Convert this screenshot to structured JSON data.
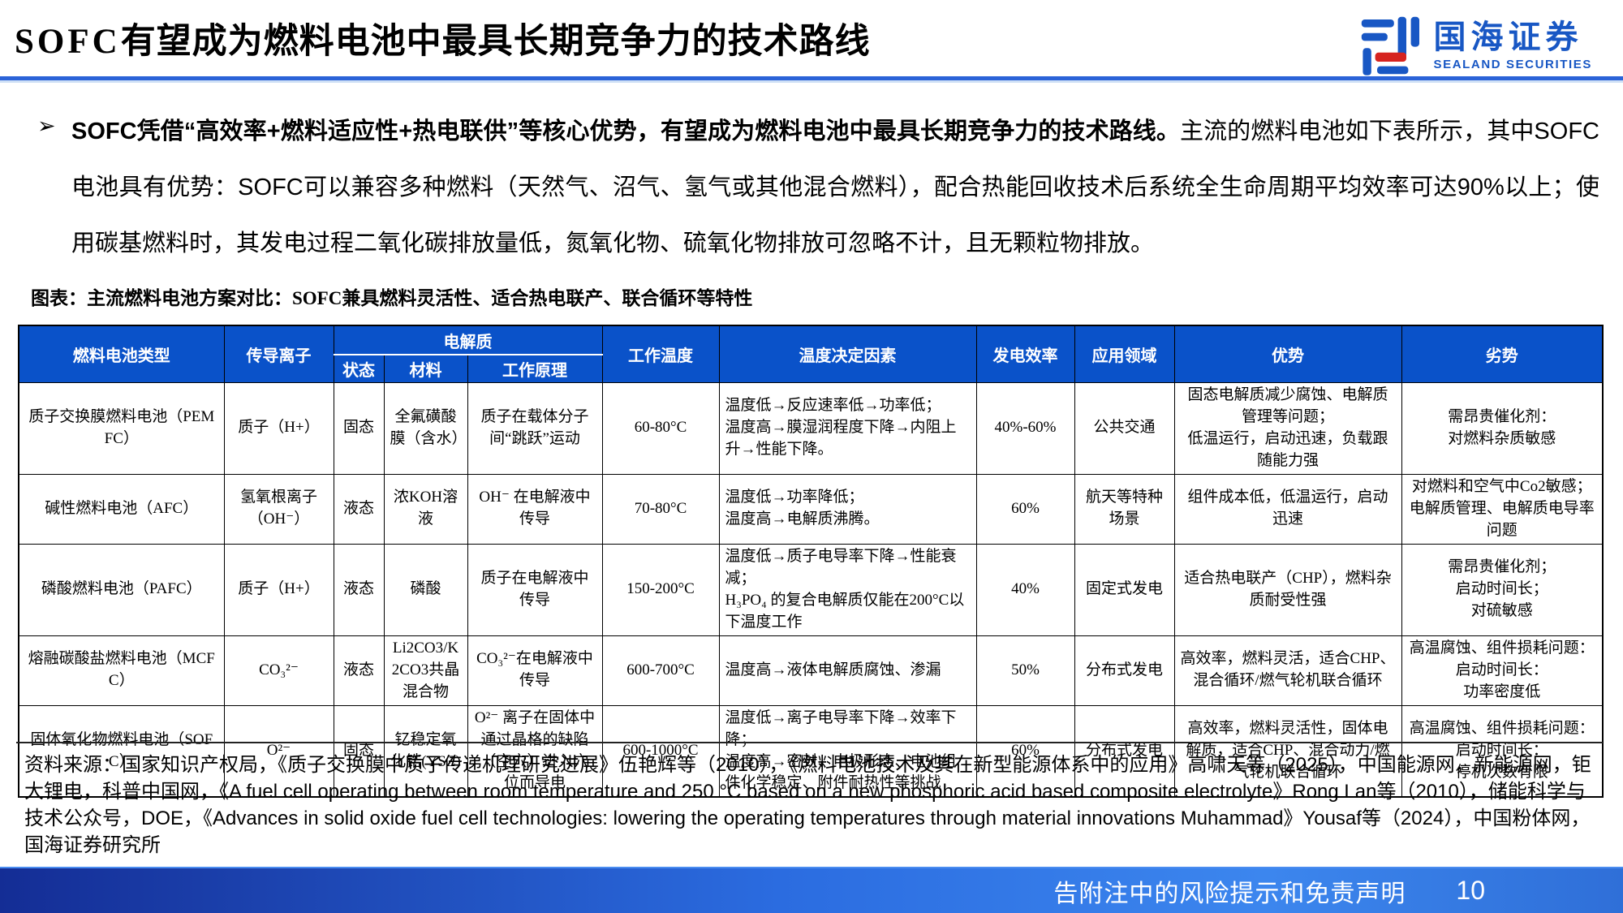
{
  "page": {
    "title_prefix": "SOFC",
    "title_main": "有望成为燃料电池中最具长期竞争力的技术路线",
    "footer_disclaimer": "告附注中的风险提示和免责声明",
    "page_number": "10"
  },
  "logo": {
    "name_cn": "国海证券",
    "name_en": "SEALAND SECURITIES"
  },
  "summary": {
    "bullet_marker": "➢",
    "bold_part": "SOFC凭借“高效率+燃料适应性+热电联供”等核心优势，有望成为燃料电池中最具长期竞争力的技术路线。",
    "regular_part": "主流的燃料电池如下表所示，其中SOFC电池具有优势：SOFC可以兼容多种燃料（天然气、沼气、氢气或其他混合燃料），配合热能回收技术后系统全生命周期平均效率可达90%以上；使用碳基燃料时，其发电过程二氧化碳排放量低，氮氧化物、硫氧化物排放可忽略不计，且无颗粒物排放。"
  },
  "figure_caption": "图表：主流燃料电池方案对比：SOFC兼具燃料灵活性、适合热电联产、联合循环等特性",
  "table": {
    "top_headers": [
      "燃料电池类型",
      "传导离子",
      "电解质",
      "工作温度",
      "温度决定因素",
      "发电效率",
      "应用领域",
      "优势",
      "劣势"
    ],
    "sub_headers": [
      "状态",
      "材料",
      "工作原理"
    ],
    "rows": [
      {
        "cells": [
          "质子交换膜燃料电池（PEMFC）",
          "质子（H+）",
          "固态",
          "全氟磺酸膜（含水）",
          "质子在载体分子间“跳跃”运动",
          "60-80°C",
          "温度低→反应速率低→功率低；\n温度高→膜湿润程度下降→内阻上升→性能下降。",
          "40%-60%",
          "公共交通",
          "固态电解质减少腐蚀、电解质管理等问题；\n低温运行，启动迅速，负载跟随能力强",
          "需昂贵催化剂：\n对燃料杂质敏感"
        ]
      },
      {
        "cells": [
          "碱性燃料电池（AFC）",
          "氢氧根离子（OH⁻）",
          "液态",
          "浓KOH溶液",
          "OH⁻ 在电解液中传导",
          "70-80°C",
          "温度低→功率降低；\n温度高→电解质沸腾。",
          "60%",
          "航天等特种场景",
          "组件成本低，低温运行，启动迅速",
          "对燃料和空气中Co2敏感；\n电解质管理、电解质电导率问题"
        ]
      },
      {
        "cells": [
          "磷酸燃料电池（PAFC）",
          "质子（H+）",
          "液态",
          "磷酸",
          "质子在电解液中传导",
          "150-200°C",
          "温度低→质子电导率下降→性能衰减；\nH₃PO₄ 的复合电解质仅能在200°C以下温度工作",
          "40%",
          "固定式发电",
          "适合热电联产（CHP），燃料杂质耐受性强",
          "需昂贵催化剂；\n启动时间长；\n对硫敏感"
        ]
      },
      {
        "cells": [
          "熔融碳酸盐燃料电池（MCFC）",
          "CO₃²⁻",
          "液态",
          "Li2CO3/K2CO3共晶混合物",
          "CO₃²⁻在电解液中传导",
          "600-700°C",
          "温度高→液体电解质腐蚀、渗漏",
          "50%",
          "分布式发电",
          "高效率，燃料灵活，适合CHP、混合循环/燃气轮机联合循环",
          "高温腐蚀、组件损耗问题：\n启动时间长：\n功率密度低"
        ]
      },
      {
        "cells": [
          "固体氧化物燃料电池（SOFC）",
          "O²⁻",
          "固态",
          "钇稳定氧化锆(YSZ)",
          "O²⁻ 离子在固体中通过晶格的缺陷（空穴）进入穴位而导电",
          "600-1000°C",
          "温度低→离子电导率下降→效率下降；\n温度高→密封、电极形态、电池组件化学稳定、附件耐热性等挑战",
          "60%",
          "分布式发电",
          "高效率，燃料灵活性，固体电解质，适合CHP、混合动力/燃气轮机联合循环",
          "高温腐蚀、组件损耗问题：\n启动时间长：\n停机次数有限"
        ]
      }
    ]
  },
  "source_note": "资料来源：国家知识产权局，《质子交换膜中质子传递机理研究进展》伍艳辉等（2010），《燃料电池技术及其在新型能源体系中的应用》高啸天等（2025），中国能源网，新能源网，钜大锂电，科普中国网，《A fuel cell operating between room temperature and 250 °C based on a new phosphoric acid based composite electrolyte》Rong Lan等（2010），储能科学与技术公众号，DOE，《Advances in solid oxide fuel cell technologies: lowering the operating temperatures through material innovations Muhammad》Yousaf等（2024），中国粉体网，国海证券研究所",
  "colors": {
    "table_header_blue": "#0a52c9",
    "title_rule_blue": "#2b63d8",
    "footer_blue_dark": "#142d95",
    "footer_blue_bright": "#3c86ee",
    "logo_blue": "#1857c4",
    "logo_red": "#d6231f"
  }
}
